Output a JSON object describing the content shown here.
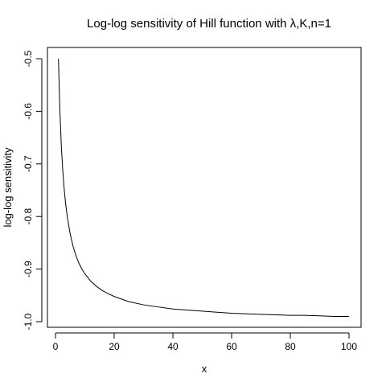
{
  "chart_data": {
    "type": "line",
    "title": "Log-log sensitivity of Hill function with λ,K,n=1",
    "xlabel": "x",
    "ylabel": "log-log sensitivity",
    "xlim": [
      1,
      100
    ],
    "ylim": [
      -1.0,
      -0.5
    ],
    "x_ticks": [
      0,
      20,
      40,
      60,
      80,
      100
    ],
    "x_tick_labels": [
      "0",
      "20",
      "40",
      "60",
      "80",
      "100"
    ],
    "y_ticks": [
      -1.0,
      -0.9,
      -0.8,
      -0.7,
      -0.6,
      -0.5
    ],
    "y_tick_labels": [
      "-1.0",
      "-0.9",
      "-0.8",
      "-0.7",
      "-0.6",
      "-0.5"
    ],
    "grid": false,
    "series": [
      {
        "color": "#000000",
        "x": [
          1,
          1.5,
          2,
          2.5,
          3,
          3.5,
          4,
          5,
          6,
          7,
          8,
          9,
          10,
          12,
          14,
          16,
          18,
          20,
          25,
          30,
          35,
          40,
          45,
          50,
          55,
          60,
          65,
          70,
          75,
          80,
          85,
          90,
          95,
          100
        ],
        "y": [
          -0.5,
          -0.6,
          -0.667,
          -0.714,
          -0.75,
          -0.778,
          -0.8,
          -0.833,
          -0.857,
          -0.875,
          -0.889,
          -0.9,
          -0.909,
          -0.923,
          -0.933,
          -0.941,
          -0.947,
          -0.952,
          -0.962,
          -0.968,
          -0.972,
          -0.976,
          -0.978,
          -0.98,
          -0.982,
          -0.984,
          -0.985,
          -0.986,
          -0.987,
          -0.988,
          -0.988,
          -0.989,
          -0.99,
          -0.99
        ]
      }
    ]
  }
}
